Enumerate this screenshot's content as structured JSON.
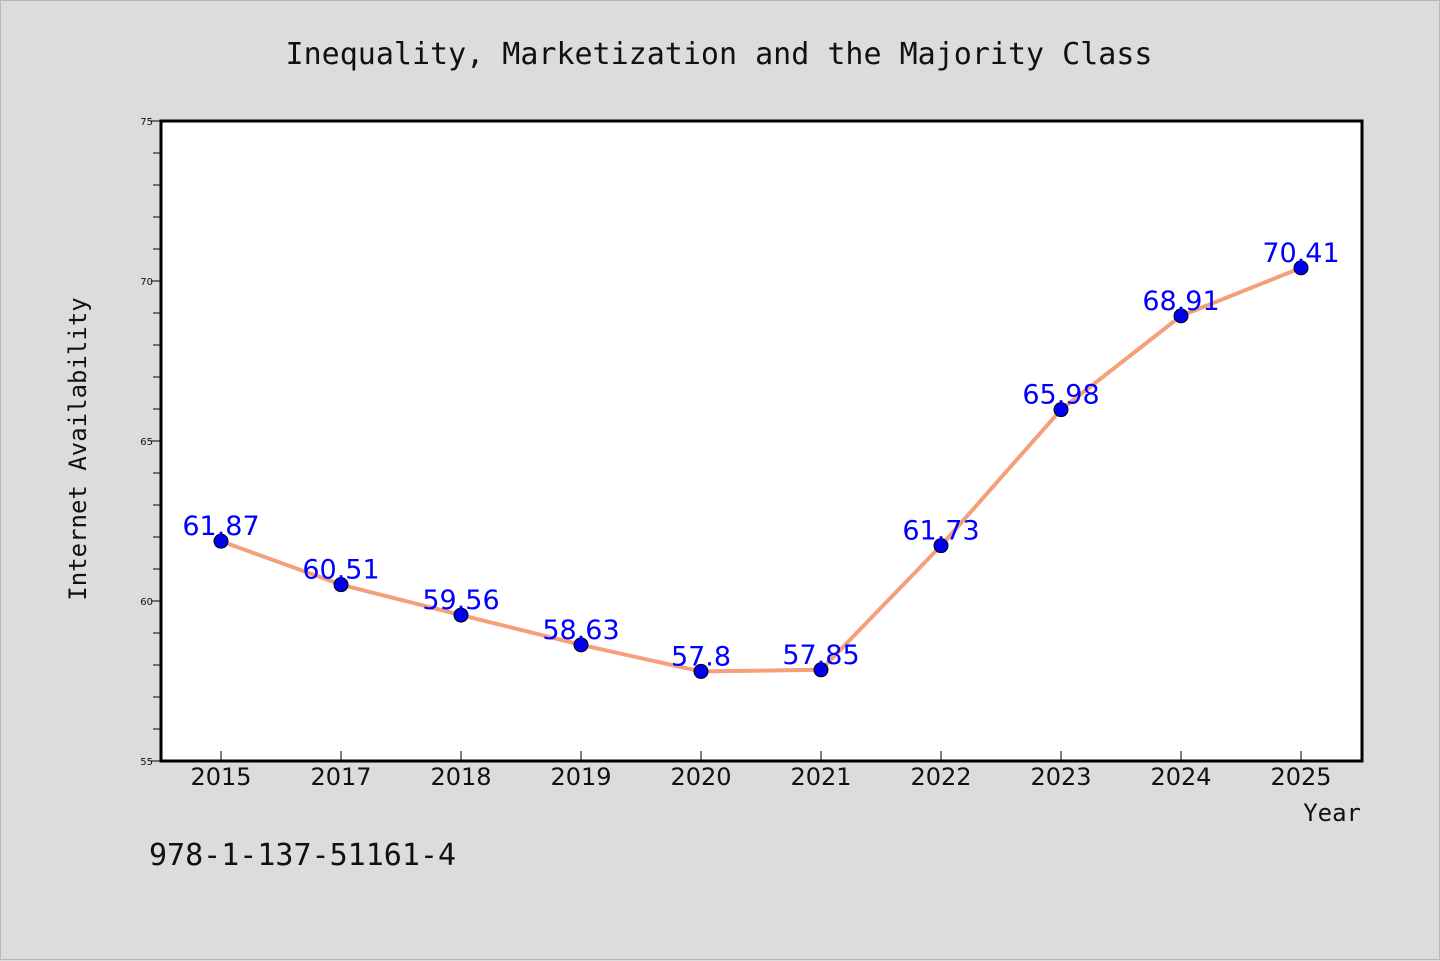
{
  "chart_data": {
    "type": "line",
    "title": "Inequality, Marketization and the Majority Class",
    "xlabel": "Year",
    "ylabel": "Internet Availability",
    "categories": [
      "2015",
      "2017",
      "2018",
      "2019",
      "2020",
      "2021",
      "2022",
      "2023",
      "2024",
      "2025"
    ],
    "series": [
      {
        "values": [
          61.87,
          60.51,
          59.56,
          58.63,
          57.8,
          57.85,
          61.73,
          65.98,
          68.91,
          70.41
        ],
        "labels": [
          "61.87",
          "60.51",
          "59.56",
          "58.63",
          "57.8",
          "57.85",
          "61.73",
          "65.98",
          "68.91",
          "70.41"
        ],
        "line_color": "#f4a07a",
        "marker_color": "#0000ee"
      }
    ],
    "ylim": [
      55,
      75
    ],
    "yticks": [
      "55",
      "60",
      "65",
      "70",
      "75"
    ],
    "grid": false,
    "legend": "none"
  },
  "footer": {
    "isbn": "978-1-137-51161-4"
  }
}
